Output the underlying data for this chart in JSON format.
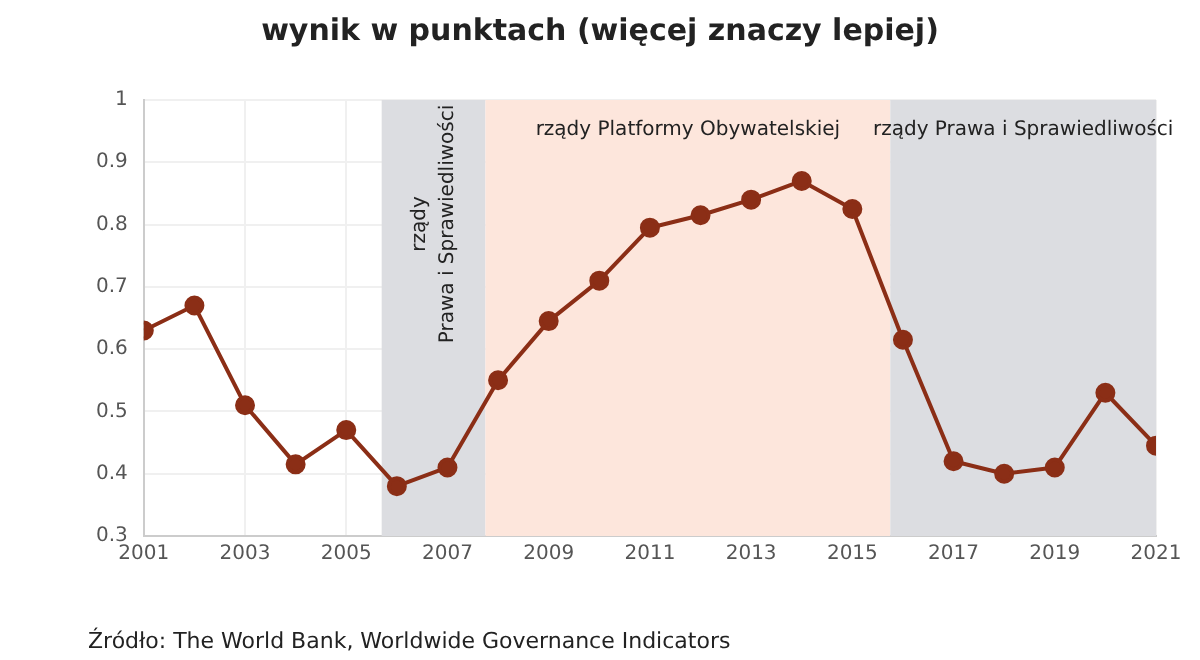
{
  "chart_data": {
    "type": "line",
    "subtitle": "wynik w punktach (więcej znaczy lepiej)",
    "x": [
      2001,
      2002,
      2003,
      2004,
      2005,
      2006,
      2007,
      2008,
      2009,
      2010,
      2011,
      2012,
      2013,
      2014,
      2015,
      2016,
      2017,
      2018,
      2019,
      2020,
      2021
    ],
    "series": [
      {
        "color": "#8b2e16",
        "values": [
          0.63,
          0.67,
          0.51,
          0.415,
          0.47,
          0.38,
          0.41,
          0.55,
          0.645,
          0.71,
          0.795,
          0.815,
          0.84,
          0.87,
          0.825,
          0.615,
          0.42,
          0.4,
          0.41,
          0.53,
          0.445
        ]
      }
    ],
    "xlim": [
      2001,
      2021
    ],
    "xticks": [
      2001,
      2003,
      2005,
      2007,
      2009,
      2011,
      2013,
      2015,
      2017,
      2019,
      2021
    ],
    "ylim": [
      0.3,
      1
    ],
    "yticks": [
      0.3,
      0.4,
      0.5,
      0.6,
      0.7,
      0.8,
      0.9,
      1
    ],
    "bands": [
      {
        "axis": "x",
        "from": 2005.7,
        "to": 2007.75,
        "label": "rządy\nPrawa i Sprawiedliwości",
        "color": "#dcdde1"
      },
      {
        "axis": "x",
        "from": 2007.75,
        "to": 2015.75,
        "label": "rządy Platformy Obywatelskiej",
        "color": "#fde6dc"
      },
      {
        "axis": "x",
        "from": 2015.75,
        "to": 2021,
        "label": "rządy Prawa i Sprawiedliwości",
        "color": "#dcdde1"
      }
    ],
    "grid": true,
    "marker": "circle",
    "line_style": "solid",
    "legend": false,
    "annotations": [
      "Źródło: The World Bank, Worldwide Governance Indicators"
    ]
  }
}
